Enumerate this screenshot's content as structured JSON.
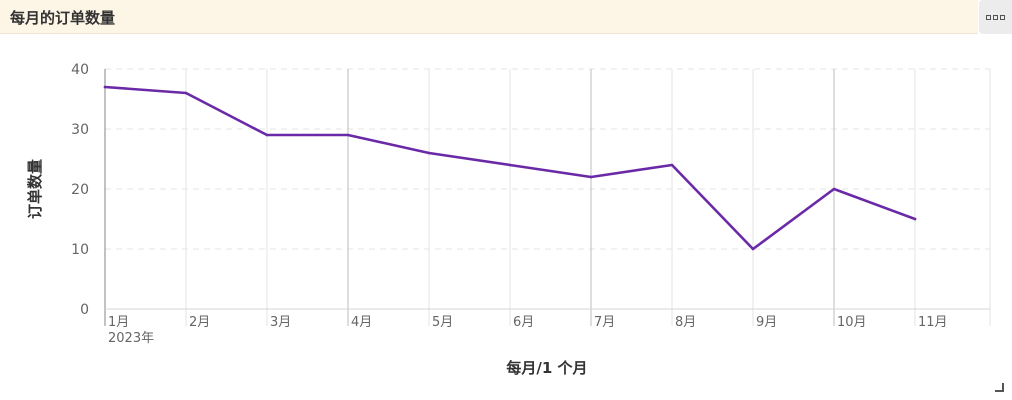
{
  "header": {
    "title": "每月的订单数量"
  },
  "more_icon": "more-options-icon",
  "chart_data": {
    "type": "line",
    "title": "",
    "xlabel": "每月/1 个月",
    "ylabel": "订单数量",
    "categories": [
      "1月",
      "2月",
      "3月",
      "4月",
      "5月",
      "6月",
      "7月",
      "8月",
      "9月",
      "10月",
      "11月"
    ],
    "year_label": "2023年",
    "values": [
      37,
      36,
      29,
      29,
      26,
      24,
      22,
      24,
      10,
      20,
      15
    ],
    "ylim": [
      0,
      40
    ],
    "yticks": [
      0,
      10,
      20,
      30,
      40
    ],
    "line_color": "#6a2aa8",
    "grid": true
  }
}
